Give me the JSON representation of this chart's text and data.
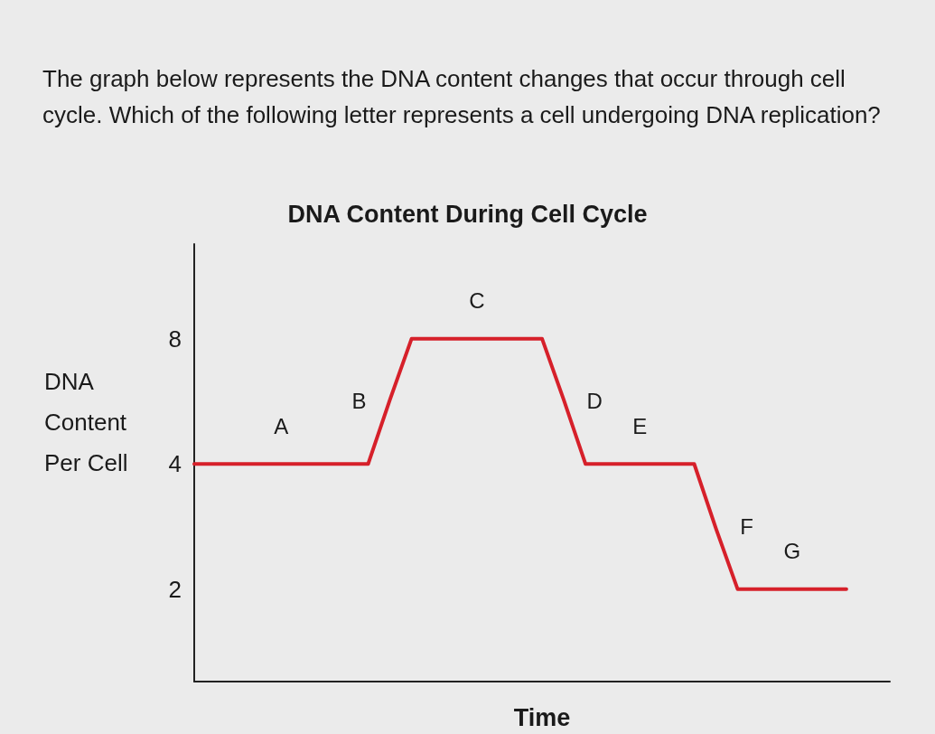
{
  "chart_data": {
    "type": "line",
    "title": "DNA Content During Cell Cycle",
    "xlabel": "Time",
    "ylabel": "DNA Content Per Cell",
    "annotations": [
      "The graph below represents the DNA content changes that occur through cell cycle. Which of the following letter represents a cell undergoing DNA replication?",
      "A",
      "B",
      "C",
      "D",
      "E",
      "F",
      "G"
    ],
    "categories": [
      null,
      null,
      null,
      null,
      null,
      null,
      null,
      null,
      null,
      null,
      null,
      null,
      null,
      null,
      null,
      null,
      null,
      null,
      null,
      null,
      null,
      null,
      null,
      null,
      null,
      null,
      null,
      null,
      null,
      null,
      null,
      null,
      null
    ],
    "series": [
      {
        "color": "#d6202a",
        "values": [
          4,
          4,
          4,
          4,
          4,
          4,
          4,
          4,
          4,
          5.7,
          8,
          8,
          8,
          8,
          8,
          8,
          8,
          5.7,
          4,
          4,
          4,
          4,
          4,
          4,
          2.8,
          2,
          2,
          2,
          2,
          2,
          2,
          null,
          null
        ]
      }
    ],
    "ylim": [
      1.2,
      13.5
    ],
    "yticks": [
      2,
      4,
      8
    ],
    "log": "y",
    "tick_labels": "y",
    "grid": false,
    "marker": "none",
    "line_style": "solid"
  }
}
